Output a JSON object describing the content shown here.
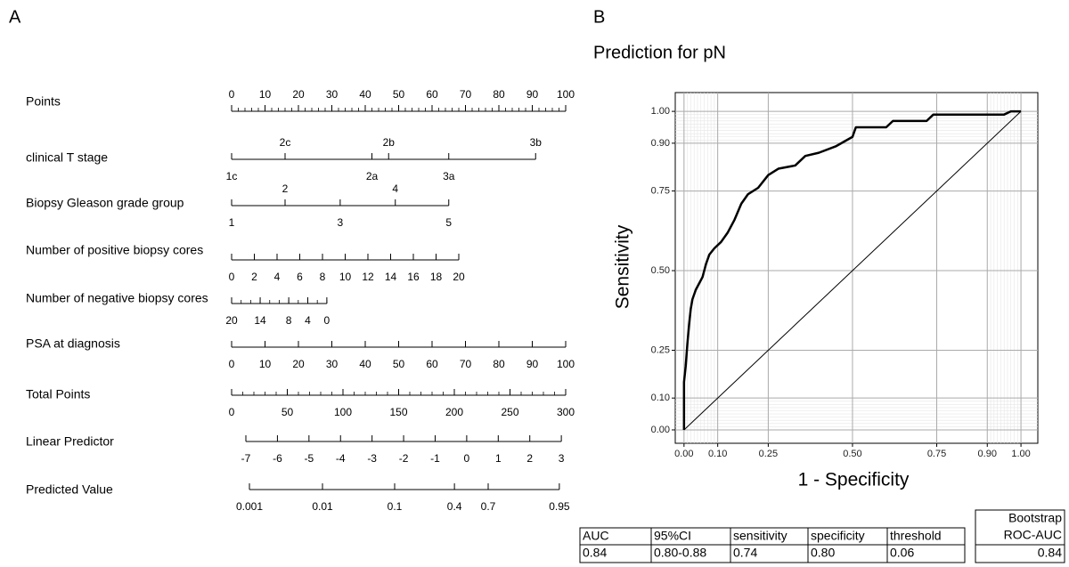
{
  "panels": [
    "A",
    "B"
  ],
  "chart_data": [
    {
      "type": "nomogram",
      "rows": [
        {
          "name": "Points",
          "lim": [
            0,
            100
          ],
          "span": [
            0,
            100
          ],
          "ticks": [
            0,
            10,
            20,
            30,
            40,
            50,
            60,
            70,
            80,
            90,
            100
          ],
          "minor_step": 2,
          "side": "above"
        },
        {
          "name": "clinical T stage",
          "categories": [
            "1c",
            "2c",
            "2a",
            "2b",
            "3a",
            "3b"
          ],
          "points": [
            0,
            16,
            42,
            47,
            65,
            91
          ],
          "sides": [
            "below",
            "above",
            "below",
            "above",
            "below",
            "above"
          ]
        },
        {
          "name": "Biopsy Gleason grade group",
          "categories": [
            "1",
            "2",
            "3",
            "4",
            "5"
          ],
          "points": [
            0,
            16,
            32.5,
            49,
            65
          ],
          "sides": [
            "below",
            "above",
            "below",
            "above",
            "below"
          ]
        },
        {
          "name": "Number of positive biopsy cores",
          "lim": [
            0,
            20
          ],
          "span": [
            0,
            68
          ],
          "ticks": [
            0,
            2,
            4,
            6,
            8,
            10,
            12,
            14,
            16,
            18,
            20
          ],
          "side": "below"
        },
        {
          "name": "Number of negative biopsy cores",
          "lim": [
            20,
            0
          ],
          "span": [
            0,
            28.5
          ],
          "ticks": [
            20,
            14,
            8,
            4,
            0
          ],
          "minor_step": 2,
          "side": "below"
        },
        {
          "name": "PSA at diagnosis",
          "lim": [
            0,
            100
          ],
          "span": [
            0,
            100
          ],
          "ticks": [
            0,
            10,
            20,
            30,
            40,
            50,
            60,
            70,
            80,
            90,
            100
          ],
          "side": "below"
        },
        {
          "name": "Total Points",
          "lim": [
            0,
            300
          ],
          "span": [
            0,
            100
          ],
          "ticks": [
            0,
            50,
            100,
            150,
            200,
            250,
            300
          ],
          "minor_step": 10,
          "side": "below"
        },
        {
          "name": "Linear Predictor",
          "lim": [
            -7,
            3
          ],
          "span": [
            4.27,
            98.7
          ],
          "ticks": [
            -7,
            -6,
            -5,
            -4,
            -3,
            -2,
            -1,
            0,
            1,
            2,
            3
          ],
          "side": "below"
        },
        {
          "name": "Predicted Value",
          "ticks": [
            0.001,
            0.01,
            0.1,
            0.4,
            0.7,
            0.95
          ],
          "points": [
            5.33,
            27.2,
            48.8,
            66.7,
            76.8,
            98.1
          ],
          "side": "below"
        }
      ]
    },
    {
      "type": "line",
      "title": "Prediction for pN",
      "x_label": "1 - Specificity",
      "y_label": "Sensitivity",
      "x": [
        0,
        0,
        0.005,
        0.01,
        0.015,
        0.02,
        0.025,
        0.035,
        0.045,
        0.055,
        0.065,
        0.075,
        0.09,
        0.11,
        0.13,
        0.15,
        0.17,
        0.19,
        0.22,
        0.25,
        0.28,
        0.33,
        0.36,
        0.4,
        0.45,
        0.5,
        0.51,
        0.6,
        0.62,
        0.72,
        0.74,
        0.95,
        0.97,
        1
      ],
      "values": [
        0,
        0.15,
        0.2,
        0.27,
        0.33,
        0.38,
        0.41,
        0.44,
        0.46,
        0.48,
        0.52,
        0.55,
        0.57,
        0.59,
        0.62,
        0.66,
        0.71,
        0.74,
        0.76,
        0.8,
        0.82,
        0.83,
        0.86,
        0.87,
        0.89,
        0.92,
        0.95,
        0.95,
        0.97,
        0.97,
        0.99,
        0.99,
        1,
        1
      ],
      "color": "#000000",
      "reference_line": {
        "x": [
          0,
          1
        ],
        "values": [
          0,
          1
        ],
        "color": "#000000"
      },
      "xlim": [
        -0.026,
        1.05
      ],
      "ylim": [
        -0.042,
        1.059
      ],
      "xticks": [
        {
          "value": 0,
          "label": "0.00"
        },
        {
          "value": 0.1,
          "label": "0.10"
        },
        {
          "value": 0.25,
          "label": "0.25"
        },
        {
          "value": 0.5,
          "label": "0.50"
        },
        {
          "value": 0.75,
          "label": "0.75"
        },
        {
          "value": 0.9,
          "label": "0.90"
        },
        {
          "value": 1,
          "label": "1.00"
        }
      ],
      "yticks": [
        {
          "value": 0,
          "label": "0.00"
        },
        {
          "value": 0.1,
          "label": "0.10"
        },
        {
          "value": 0.25,
          "label": "0.25"
        },
        {
          "value": 0.5,
          "label": "0.50"
        },
        {
          "value": 0.75,
          "label": "0.75"
        },
        {
          "value": 0.9,
          "label": "0.90"
        },
        {
          "value": 1,
          "label": "1.00"
        }
      ],
      "grid": true,
      "minor_grid_step": 0.01,
      "minor_grid_ranges": [
        [
          0,
          0.1
        ],
        [
          0.9,
          1
        ]
      ]
    }
  ],
  "table": {
    "header": [
      "AUC",
      "95%CI",
      "sensitivity",
      "specificity",
      "threshold"
    ],
    "rows": [
      [
        "0.84",
        "0.80-0.88",
        "0.74",
        "0.80",
        "0.06"
      ]
    ]
  },
  "bootstrap_table": {
    "header": [
      "Bootstrap",
      "ROC-AUC"
    ],
    "value": "0.84"
  }
}
